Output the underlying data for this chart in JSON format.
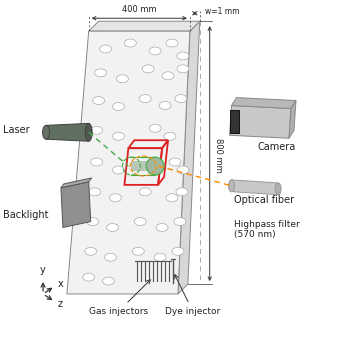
{
  "bg_color": "#ffffff",
  "text_color": "#222222",
  "panel_front_color": "#f2f2f2",
  "panel_right_color": "#d8d8d8",
  "panel_top_color": "#e5e5e5",
  "panel_edge_color": "#888888",
  "bubble_edge_color": "#aaaaaa",
  "red_box_color": "#dd2222",
  "green_color": "#44aa44",
  "orange_color": "#ff8800",
  "laser_body_color": "#607060",
  "laser_edge_color": "#404040",
  "backlight_color": "#909090",
  "backlight_edge_color": "#555555",
  "camera_body_color": "#c8c8c8",
  "camera_edge_color": "#888888",
  "fiber_body_color": "#c8c8c8",
  "fiber_edge_color": "#999999",
  "injector_color": "#555555",
  "obs_fill_color": "#c8d0c8",
  "obs_edge_color": "#44aa44",
  "labels": {
    "laser": "Laser",
    "backlight": "Backlight",
    "camera": "Camera",
    "optical_fiber": "Optical fiber",
    "highpass": "Highpass filter\n(570 nm)",
    "gas_injectors": "Gas injectors",
    "dye_injector": "Dye injector",
    "width_400": "400 mm",
    "height_800": "800 mm",
    "thickness": "w=1 mm"
  },
  "figsize": [
    3.47,
    3.37
  ],
  "dpi": 100
}
